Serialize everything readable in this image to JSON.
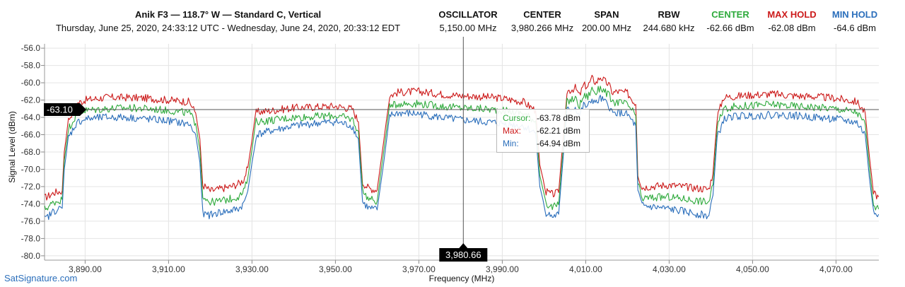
{
  "header": {
    "title": "Anik F3 — 118.7° W — Standard C, Vertical",
    "subtitle": "Thursday, June 25, 2020, 24:33:12 UTC - Wednesday, June 24, 2020, 20:33:12 EDT",
    "stats": [
      {
        "label": "OSCILLATOR",
        "value": "5,150.00 MHz",
        "color": "#111111"
      },
      {
        "label": "CENTER",
        "value": "3,980.266 MHz",
        "color": "#111111"
      },
      {
        "label": "SPAN",
        "value": "200.00 MHz",
        "color": "#111111"
      },
      {
        "label": "RBW",
        "value": "244.680 kHz",
        "color": "#111111"
      },
      {
        "label": "CENTER",
        "value": "-62.66 dBm",
        "color": "#2eaa3c"
      },
      {
        "label": "MAX HOLD",
        "value": "-62.08 dBm",
        "color": "#cc1a1a"
      },
      {
        "label": "MIN HOLD",
        "value": "-64.6 dBm",
        "color": "#2a6ebb"
      }
    ]
  },
  "cursor": {
    "y_label": "-63.10",
    "x_label": "3,980.66",
    "tooltip": {
      "cursor_label": "Cursor:",
      "cursor_value": "-63.78 dBm",
      "max_label": "Max:",
      "max_value": "-62.21 dBm",
      "min_label": "Min:",
      "min_value": "-64.94 dBm"
    }
  },
  "footer": {
    "site": "SatSignature.com"
  },
  "colors": {
    "center": "#2eaa3c",
    "max": "#cc1a1a",
    "min": "#2a6ebb",
    "grid": "#e4e4e4"
  },
  "chart_data": {
    "type": "line",
    "xlabel": "Frequency (MHz)",
    "ylabel": "Signal Level (dBm)",
    "xlim": [
      3880.27,
      4080.27
    ],
    "ylim": [
      -80.5,
      -55.5
    ],
    "x_ticks": [
      "3,890.00",
      "3,910.00",
      "3,930.00",
      "3,950.00",
      "3,970.00",
      "3,990.00",
      "4,010.00",
      "4,030.00",
      "4,050.00",
      "4,070.00"
    ],
    "x_tick_values": [
      3890,
      3910,
      3930,
      3950,
      3970,
      3990,
      4010,
      4030,
      4050,
      4070
    ],
    "y_ticks": [
      "-56.0",
      "-58.0",
      "-60.0",
      "-62.0",
      "-64.0",
      "-66.0",
      "-68.0",
      "-70.0",
      "-72.0",
      "-74.0",
      "-76.0",
      "-78.0",
      "-80.0"
    ],
    "y_tick_values": [
      -56,
      -58,
      -60,
      -62,
      -64,
      -66,
      -68,
      -70,
      -72,
      -74,
      -76,
      -78,
      -80
    ],
    "grid": true,
    "cursor_x": 3980.66,
    "cursor_y": -63.1,
    "series": [
      {
        "name": "MAX HOLD",
        "x": [
          3880.3,
          3881.5,
          3882.5,
          3884.5,
          3885.0,
          3886.0,
          3888.0,
          3890.0,
          3895.0,
          3900.0,
          3905.0,
          3910.0,
          3915.0,
          3916.5,
          3917.5,
          3918.2,
          3920.0,
          3922.0,
          3925.0,
          3927.0,
          3928.0,
          3929.0,
          3931.0,
          3935.0,
          3940.0,
          3945.0,
          3950.0,
          3954.0,
          3955.5,
          3956.5,
          3958.0,
          3960.0,
          3961.5,
          3963.0,
          3965.0,
          3970.0,
          3975.0,
          3980.0,
          3985.0,
          3990.0,
          3995.0,
          3998.0,
          3999.0,
          4000.5,
          4002.0,
          4003.5,
          4005.5,
          4007.5,
          4008.5,
          4009.5,
          4010.5,
          4011.5,
          4012.5,
          4013.5,
          4014.5,
          4015.5,
          4016.5,
          4017.5,
          4020.0,
          4022.0,
          4022.5,
          4023.5,
          4025.0,
          4030.0,
          4035.0,
          4039.5,
          4040.5,
          4041.5,
          4043.0,
          4045.0,
          4050.0,
          4055.0,
          4060.0,
          4065.0,
          4070.0,
          4075.0,
          4077.0,
          4078.0,
          4079.0,
          4080.2
        ],
        "values": [
          -73.3,
          -73.0,
          -72.7,
          -72.5,
          -68.0,
          -64.3,
          -62.4,
          -62.0,
          -61.7,
          -61.7,
          -61.8,
          -62.0,
          -62.2,
          -63.5,
          -66.5,
          -71.8,
          -72.5,
          -72.3,
          -72.0,
          -71.6,
          -71.2,
          -69.8,
          -63.4,
          -63.2,
          -62.9,
          -62.8,
          -62.7,
          -63.0,
          -64.5,
          -71.5,
          -72.2,
          -72.4,
          -67.0,
          -61.5,
          -61.1,
          -61.0,
          -61.3,
          -61.5,
          -61.6,
          -61.8,
          -62.2,
          -63.2,
          -69.5,
          -72.6,
          -72.9,
          -72.7,
          -61.0,
          -60.6,
          -61.5,
          -60.3,
          -60.4,
          -59.5,
          -60.0,
          -59.3,
          -59.8,
          -60.2,
          -61.2,
          -61.0,
          -61.2,
          -62.5,
          -70.5,
          -72.1,
          -72.0,
          -71.8,
          -72.1,
          -72.3,
          -70.5,
          -64.0,
          -61.7,
          -61.6,
          -61.4,
          -61.3,
          -61.5,
          -61.6,
          -61.8,
          -62.2,
          -63.5,
          -68.5,
          -72.8,
          -73.2
        ]
      },
      {
        "name": "CENTER",
        "x": [
          3880.3,
          3881.5,
          3882.5,
          3884.5,
          3885.0,
          3886.0,
          3888.0,
          3890.0,
          3895.0,
          3900.0,
          3905.0,
          3910.0,
          3915.0,
          3916.5,
          3917.5,
          3918.2,
          3920.0,
          3922.0,
          3925.0,
          3927.0,
          3928.0,
          3929.0,
          3931.0,
          3935.0,
          3940.0,
          3945.0,
          3950.0,
          3954.0,
          3955.5,
          3956.5,
          3958.0,
          3960.0,
          3961.5,
          3963.0,
          3965.0,
          3970.0,
          3975.0,
          3980.0,
          3985.0,
          3990.0,
          3995.0,
          3998.0,
          3999.0,
          4000.5,
          4002.0,
          4003.5,
          4005.5,
          4007.5,
          4008.5,
          4009.5,
          4010.5,
          4011.5,
          4012.5,
          4013.5,
          4014.5,
          4015.5,
          4016.5,
          4017.5,
          4020.0,
          4022.0,
          4022.5,
          4023.5,
          4025.0,
          4030.0,
          4035.0,
          4039.5,
          4040.5,
          4041.5,
          4043.0,
          4045.0,
          4050.0,
          4055.0,
          4060.0,
          4065.0,
          4070.0,
          4075.0,
          4077.0,
          4078.0,
          4079.0,
          4080.2
        ],
        "values": [
          -74.6,
          -74.2,
          -73.8,
          -73.5,
          -69.0,
          -65.3,
          -63.6,
          -63.2,
          -63.0,
          -62.9,
          -63.0,
          -63.2,
          -63.5,
          -64.7,
          -67.8,
          -73.0,
          -73.8,
          -73.7,
          -73.4,
          -73.1,
          -72.6,
          -71.0,
          -64.5,
          -64.3,
          -64.0,
          -63.9,
          -63.8,
          -64.2,
          -65.6,
          -72.5,
          -73.4,
          -73.7,
          -68.2,
          -62.8,
          -62.4,
          -62.4,
          -62.7,
          -62.9,
          -63.0,
          -63.2,
          -63.5,
          -64.4,
          -70.7,
          -73.9,
          -74.4,
          -74.1,
          -62.2,
          -61.8,
          -62.7,
          -61.5,
          -61.6,
          -60.7,
          -61.2,
          -60.5,
          -61.0,
          -61.4,
          -62.4,
          -62.2,
          -62.5,
          -63.8,
          -71.7,
          -73.4,
          -73.3,
          -73.2,
          -73.5,
          -73.8,
          -71.8,
          -65.2,
          -63.0,
          -62.8,
          -62.6,
          -62.5,
          -62.7,
          -62.8,
          -63.0,
          -63.4,
          -64.8,
          -69.7,
          -74.3,
          -74.6
        ]
      },
      {
        "name": "MIN HOLD",
        "x": [
          3880.3,
          3881.5,
          3882.5,
          3884.5,
          3885.0,
          3886.0,
          3888.0,
          3890.0,
          3895.0,
          3900.0,
          3905.0,
          3910.0,
          3915.0,
          3916.5,
          3917.5,
          3918.2,
          3920.0,
          3922.0,
          3925.0,
          3927.0,
          3928.0,
          3929.0,
          3931.0,
          3935.0,
          3940.0,
          3945.0,
          3950.0,
          3954.0,
          3955.5,
          3956.5,
          3958.0,
          3960.0,
          3961.5,
          3963.0,
          3965.0,
          3970.0,
          3975.0,
          3980.0,
          3985.0,
          3990.0,
          3995.0,
          3998.0,
          3999.0,
          4000.5,
          4002.0,
          4003.5,
          4005.5,
          4007.5,
          4008.5,
          4009.5,
          4010.5,
          4011.5,
          4012.5,
          4013.5,
          4014.5,
          4015.5,
          4016.5,
          4017.5,
          4020.0,
          4022.0,
          4022.5,
          4023.5,
          4025.0,
          4030.0,
          4035.0,
          4039.5,
          4040.5,
          4041.5,
          4043.0,
          4045.0,
          4050.0,
          4055.0,
          4060.0,
          4065.0,
          4070.0,
          4075.0,
          4077.0,
          4078.0,
          4079.0,
          4080.2
        ],
        "values": [
          -75.8,
          -75.3,
          -74.8,
          -74.5,
          -70.0,
          -66.3,
          -64.6,
          -64.2,
          -64.0,
          -64.0,
          -64.2,
          -64.4,
          -64.8,
          -66.0,
          -69.2,
          -75.2,
          -75.3,
          -75.0,
          -74.8,
          -74.5,
          -74.0,
          -72.5,
          -66.0,
          -65.5,
          -65.0,
          -64.7,
          -64.5,
          -65.0,
          -66.5,
          -73.8,
          -74.5,
          -74.7,
          -69.5,
          -63.8,
          -63.5,
          -63.6,
          -64.0,
          -64.3,
          -64.5,
          -64.7,
          -65.0,
          -65.8,
          -72.0,
          -75.0,
          -75.5,
          -75.2,
          -63.2,
          -62.9,
          -63.8,
          -62.6,
          -62.8,
          -61.9,
          -62.4,
          -61.8,
          -62.2,
          -62.6,
          -63.6,
          -63.4,
          -63.7,
          -65.0,
          -72.6,
          -74.2,
          -74.3,
          -74.6,
          -75.0,
          -75.4,
          -73.0,
          -66.4,
          -64.3,
          -63.9,
          -63.8,
          -63.7,
          -63.8,
          -64.0,
          -64.2,
          -64.6,
          -66.0,
          -71.0,
          -75.0,
          -75.2
        ]
      }
    ]
  }
}
